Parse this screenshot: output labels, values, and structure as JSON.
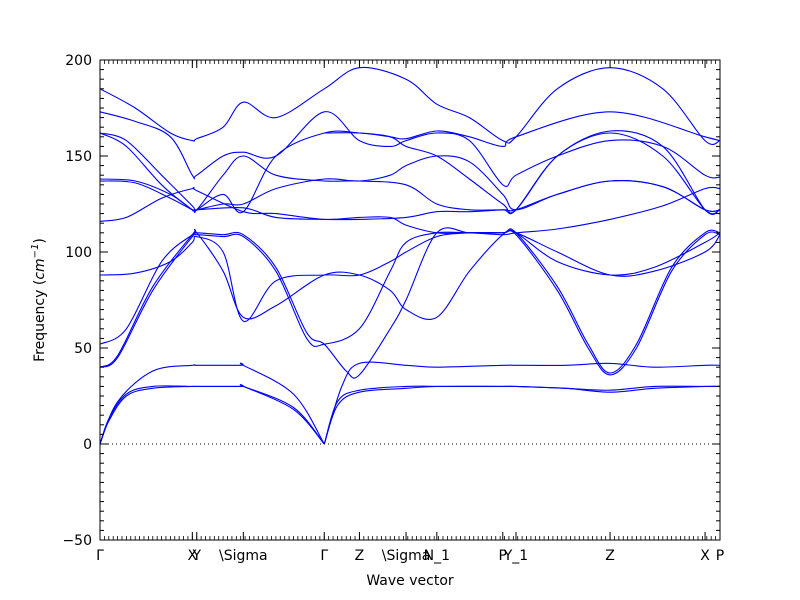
{
  "chart_data": {
    "type": "line",
    "xlabel": "Wave vector",
    "ylabel": {
      "prefix": "Frequency (",
      "unit_base": "cm",
      "unit_exp": "−1",
      "suffix": ")"
    },
    "ylim": [
      -50,
      200
    ],
    "yticks": [
      -50,
      0,
      50,
      100,
      150,
      200
    ],
    "xlim": [
      0,
      7.05
    ],
    "grid": false,
    "legend": "none",
    "zero_line": {
      "y": 0,
      "style": "dotted"
    },
    "line_color": "#0000ff",
    "xtick_labels": [
      {
        "pos": 0.0,
        "label": "Γ"
      },
      {
        "pos": 1.05,
        "label": "X"
      },
      {
        "pos": 1.1,
        "label": "Y"
      },
      {
        "pos": 1.63,
        "label": "\\Sigma"
      },
      {
        "pos": 2.55,
        "label": "Γ"
      },
      {
        "pos": 2.95,
        "label": "Z"
      },
      {
        "pos": 3.48,
        "label": "\\Sigma"
      },
      {
        "pos": 3.83,
        "label": "N_1"
      },
      {
        "pos": 4.58,
        "label": "P"
      },
      {
        "pos": 4.73,
        "label": "Y_1"
      },
      {
        "pos": 5.8,
        "label": "Z"
      },
      {
        "pos": 6.88,
        "label": "X"
      },
      {
        "pos": 7.05,
        "label": "P"
      }
    ],
    "series": [
      {
        "x": [
          0,
          0.1,
          0.3,
          0.6,
          1.05,
          1.1,
          1.6,
          1.63,
          2.2,
          2.55
        ],
        "y": [
          0,
          12,
          25,
          29,
          30,
          30,
          30,
          30,
          18,
          0
        ]
      },
      {
        "x": [
          0,
          0.1,
          0.3,
          0.6,
          1.05,
          1.1,
          1.6,
          1.63,
          2.2,
          2.55
        ],
        "y": [
          0,
          13,
          26,
          30,
          30,
          30,
          30,
          30,
          19,
          0
        ]
      },
      {
        "x": [
          0,
          0.2,
          0.6,
          1.05,
          1.1,
          1.6,
          1.63,
          2.2,
          2.55
        ],
        "y": [
          0,
          22,
          38,
          41,
          41,
          41,
          41,
          26,
          0
        ]
      },
      {
        "x": [
          2.55,
          2.7,
          2.95,
          3.48,
          3.83,
          4.58,
          4.73,
          5.3,
          5.8,
          6.3,
          6.88,
          7.05
        ],
        "y": [
          0,
          20,
          27,
          29,
          30,
          30,
          30,
          29,
          27,
          29,
          30,
          30
        ]
      },
      {
        "x": [
          2.55,
          2.7,
          2.95,
          3.48,
          3.83,
          4.58,
          4.73,
          5.3,
          5.8,
          6.3,
          6.88,
          7.05
        ],
        "y": [
          0,
          22,
          28,
          30,
          30,
          30,
          30,
          29,
          28,
          30,
          30,
          30
        ]
      },
      {
        "x": [
          2.55,
          2.75,
          2.95,
          3.48,
          3.83,
          4.58,
          4.73,
          5.3,
          5.8,
          6.3,
          6.88,
          7.05
        ],
        "y": [
          0,
          30,
          42,
          41,
          40,
          41,
          41,
          41,
          42,
          40,
          41,
          41
        ]
      },
      {
        "x": [
          0,
          0.2,
          0.6,
          1.05,
          1.1,
          1.4,
          1.63,
          2.0,
          2.35,
          2.55,
          2.95,
          3.3,
          3.48,
          3.83,
          4.2,
          4.58,
          4.73,
          5.2,
          5.55,
          5.8,
          6.1,
          6.5,
          6.88,
          7.05
        ],
        "y": [
          40,
          45,
          80,
          108,
          109,
          108,
          108,
          90,
          55,
          52,
          60,
          90,
          105,
          110,
          110,
          110,
          109,
          80,
          50,
          36,
          50,
          90,
          109,
          109
        ]
      },
      {
        "x": [
          0,
          0.2,
          0.6,
          1.05,
          1.1,
          1.4,
          1.63,
          2.0,
          2.35,
          2.55,
          2.8,
          2.95,
          3.3,
          3.48,
          3.83,
          4.2,
          4.58,
          4.73,
          5.2,
          5.55,
          5.8,
          6.1,
          6.5,
          6.88,
          7.05
        ],
        "y": [
          40,
          46,
          82,
          109,
          110,
          109,
          109,
          92,
          58,
          52,
          38,
          36,
          60,
          75,
          110,
          110,
          110,
          110,
          82,
          52,
          37,
          52,
          92,
          110,
          110
        ]
      },
      {
        "x": [
          0,
          0.3,
          0.7,
          1.05,
          1.1,
          1.4,
          1.63,
          2.0,
          2.55,
          2.95,
          3.3,
          3.48,
          3.83,
          4.2,
          4.58,
          4.73,
          5.2,
          5.8,
          6.3,
          6.88,
          7.05
        ],
        "y": [
          52,
          60,
          95,
          109,
          110,
          90,
          66,
          72,
          88,
          88,
          80,
          70,
          66,
          90,
          109,
          110,
          100,
          88,
          90,
          100,
          109
        ]
      },
      {
        "x": [
          0,
          0.4,
          0.8,
          1.05,
          1.1,
          1.4,
          1.63,
          2.0,
          2.55,
          2.95,
          3.3,
          3.48,
          3.83,
          4.2,
          4.58,
          4.73,
          5.2,
          5.8,
          6.3,
          6.88,
          7.05
        ],
        "y": [
          88,
          89,
          95,
          105,
          108,
          100,
          64,
          85,
          88,
          88,
          95,
          100,
          108,
          110,
          110,
          110,
          95,
          88,
          92,
          105,
          110
        ]
      },
      {
        "x": [
          0,
          0.3,
          0.7,
          1.05,
          1.1,
          1.63,
          2.0,
          2.55,
          2.95,
          3.3,
          3.48,
          3.83,
          4.2,
          4.58,
          4.73,
          5.2,
          5.8,
          6.4,
          6.88,
          7.05
        ],
        "y": [
          116,
          118,
          128,
          133,
          132,
          121,
          120,
          117,
          118,
          118,
          114,
          110,
          110,
          109,
          110,
          112,
          117,
          124,
          133,
          133
        ]
      },
      {
        "x": [
          0,
          0.4,
          0.8,
          1.05,
          1.1,
          1.63,
          2.0,
          2.55,
          2.95,
          3.48,
          3.83,
          4.2,
          4.58,
          4.73,
          5.2,
          5.8,
          6.4,
          6.88,
          7.05
        ],
        "y": [
          138,
          137,
          130,
          122,
          122,
          123,
          118,
          117,
          117,
          118,
          121,
          121,
          122,
          122,
          130,
          137,
          134,
          122,
          122
        ]
      },
      {
        "x": [
          0,
          0.4,
          0.8,
          1.05,
          1.1,
          1.4,
          1.63,
          2.0,
          2.55,
          2.95,
          3.3,
          3.48,
          3.83,
          4.2,
          4.58,
          4.73,
          5.2,
          5.8,
          6.4,
          6.88,
          7.05
        ],
        "y": [
          137,
          136,
          128,
          122,
          122,
          125,
          125,
          133,
          138,
          137,
          140,
          145,
          150,
          147,
          130,
          122,
          130,
          137,
          134,
          122,
          122
        ]
      },
      {
        "x": [
          0,
          0.3,
          0.7,
          1.05,
          1.1,
          1.4,
          1.63,
          2.0,
          2.55,
          2.95,
          3.48,
          3.83,
          4.2,
          4.58,
          4.73,
          5.2,
          5.8,
          6.4,
          6.88,
          7.05
        ],
        "y": [
          162,
          158,
          140,
          124,
          122,
          140,
          150,
          140,
          137,
          137,
          135,
          125,
          122,
          122,
          122,
          150,
          162,
          150,
          122,
          122
        ]
      },
      {
        "x": [
          0,
          0.3,
          0.7,
          1.05,
          1.1,
          1.4,
          1.63,
          2.0,
          2.55,
          2.95,
          3.3,
          3.48,
          3.83,
          4.2,
          4.58,
          4.73,
          5.2,
          5.8,
          6.4,
          6.88,
          7.05
        ],
        "y": [
          162,
          155,
          135,
          122,
          122,
          130,
          121,
          150,
          162,
          162,
          160,
          155,
          150,
          138,
          125,
          122,
          150,
          163,
          155,
          122,
          122
        ]
      },
      {
        "x": [
          0,
          0.4,
          0.8,
          1.05,
          1.1,
          1.4,
          1.63,
          2.0,
          2.55,
          2.95,
          3.3,
          3.48,
          3.83,
          4.2,
          4.58,
          4.73,
          5.2,
          5.8,
          6.4,
          6.88,
          7.05
        ],
        "y": [
          173,
          168,
          160,
          140,
          140,
          150,
          152,
          150,
          173,
          158,
          155,
          158,
          162,
          158,
          135,
          140,
          150,
          158,
          155,
          140,
          139
        ]
      },
      {
        "x": [
          0,
          0.4,
          0.8,
          1.05,
          1.1,
          1.4,
          1.63,
          2.0,
          2.55,
          2.95,
          3.48,
          3.83,
          4.2,
          4.58,
          4.73,
          5.2,
          5.8,
          6.4,
          6.88,
          7.05
        ],
        "y": [
          185,
          175,
          162,
          158,
          159,
          165,
          178,
          170,
          185,
          196,
          190,
          177,
          170,
          158,
          160,
          185,
          196,
          185,
          158,
          158
        ]
      },
      {
        "x": [
          2.55,
          2.95,
          3.3,
          3.48,
          3.83,
          4.2,
          4.58,
          4.73,
          5.8,
          6.88,
          7.05
        ],
        "y": [
          162,
          162,
          160,
          159,
          163,
          160,
          155,
          160,
          173,
          160,
          158
        ]
      }
    ]
  }
}
